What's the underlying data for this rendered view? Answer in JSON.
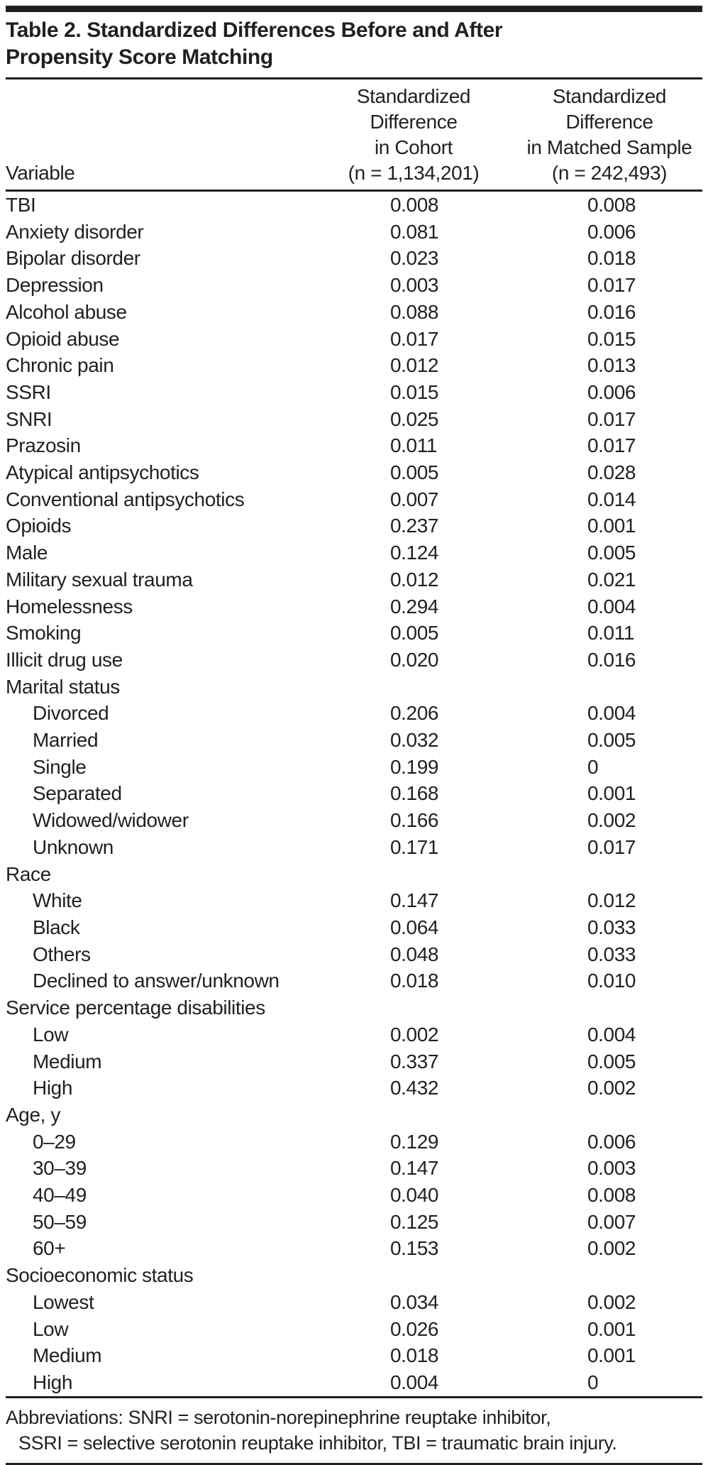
{
  "title": "Table 2. Standardized Differences Before and After\nPropensity Score Matching",
  "columns": {
    "variable": "Variable",
    "cohort": "Standardized\nDifference\nin Cohort\n(n = 1,134,201)",
    "matched": "Standardized\nDifference\nin Matched Sample\n(n = 242,493)"
  },
  "rows": [
    {
      "label": "TBI",
      "cohort": "0.008",
      "matched": "0.008"
    },
    {
      "label": "Anxiety disorder",
      "cohort": "0.081",
      "matched": "0.006"
    },
    {
      "label": "Bipolar disorder",
      "cohort": "0.023",
      "matched": "0.018"
    },
    {
      "label": "Depression",
      "cohort": "0.003",
      "matched": "0.017"
    },
    {
      "label": "Alcohol abuse",
      "cohort": "0.088",
      "matched": "0.016"
    },
    {
      "label": "Opioid abuse",
      "cohort": "0.017",
      "matched": "0.015"
    },
    {
      "label": "Chronic pain",
      "cohort": "0.012",
      "matched": "0.013"
    },
    {
      "label": "SSRI",
      "cohort": "0.015",
      "matched": "0.006"
    },
    {
      "label": "SNRI",
      "cohort": "0.025",
      "matched": "0.017"
    },
    {
      "label": "Prazosin",
      "cohort": "0.011",
      "matched": "0.017"
    },
    {
      "label": "Atypical antipsychotics",
      "cohort": "0.005",
      "matched": "0.028"
    },
    {
      "label": "Conventional antipsychotics",
      "cohort": "0.007",
      "matched": "0.014"
    },
    {
      "label": "Opioids",
      "cohort": "0.237",
      "matched": "0.001"
    },
    {
      "label": "Male",
      "cohort": "0.124",
      "matched": "0.005"
    },
    {
      "label": "Military sexual trauma",
      "cohort": "0.012",
      "matched": "0.021"
    },
    {
      "label": "Homelessness",
      "cohort": "0.294",
      "matched": "0.004"
    },
    {
      "label": "Smoking",
      "cohort": "0.005",
      "matched": "0.011"
    },
    {
      "label": "Illicit drug use",
      "cohort": "0.020",
      "matched": "0.016"
    },
    {
      "label": "Marital status",
      "section": true
    },
    {
      "label": "Divorced",
      "indent": true,
      "cohort": "0.206",
      "matched": "0.004"
    },
    {
      "label": "Married",
      "indent": true,
      "cohort": "0.032",
      "matched": "0.005"
    },
    {
      "label": "Single",
      "indent": true,
      "cohort": "0.199",
      "matched": "0"
    },
    {
      "label": "Separated",
      "indent": true,
      "cohort": "0.168",
      "matched": "0.001"
    },
    {
      "label": "Widowed/widower",
      "indent": true,
      "cohort": "0.166",
      "matched": "0.002"
    },
    {
      "label": "Unknown",
      "indent": true,
      "cohort": "0.171",
      "matched": "0.017"
    },
    {
      "label": "Race",
      "section": true
    },
    {
      "label": "White",
      "indent": true,
      "cohort": "0.147",
      "matched": "0.012"
    },
    {
      "label": "Black",
      "indent": true,
      "cohort": "0.064",
      "matched": "0.033"
    },
    {
      "label": "Others",
      "indent": true,
      "cohort": "0.048",
      "matched": "0.033"
    },
    {
      "label": "Declined to answer/unknown",
      "indent": true,
      "cohort": "0.018",
      "matched": "0.010"
    },
    {
      "label": "Service percentage disabilities",
      "section": true
    },
    {
      "label": "Low",
      "indent": true,
      "cohort": "0.002",
      "matched": "0.004"
    },
    {
      "label": "Medium",
      "indent": true,
      "cohort": "0.337",
      "matched": "0.005"
    },
    {
      "label": "High",
      "indent": true,
      "cohort": "0.432",
      "matched": "0.002"
    },
    {
      "label": "Age, y",
      "section": true
    },
    {
      "label": "0–29",
      "indent": true,
      "cohort": "0.129",
      "matched": "0.006"
    },
    {
      "label": "30–39",
      "indent": true,
      "cohort": "0.147",
      "matched": "0.003"
    },
    {
      "label": "40–49",
      "indent": true,
      "cohort": "0.040",
      "matched": "0.008"
    },
    {
      "label": "50–59",
      "indent": true,
      "cohort": "0.125",
      "matched": "0.007"
    },
    {
      "label": "60+",
      "indent": true,
      "cohort": "0.153",
      "matched": "0.002"
    },
    {
      "label": "Socioeconomic status",
      "section": true
    },
    {
      "label": "Lowest",
      "indent": true,
      "cohort": "0.034",
      "matched": "0.002"
    },
    {
      "label": "Low",
      "indent": true,
      "cohort": "0.026",
      "matched": "0.001"
    },
    {
      "label": "Medium",
      "indent": true,
      "cohort": "0.018",
      "matched": "0.001"
    },
    {
      "label": "High",
      "indent": true,
      "cohort": "0.004",
      "matched": "0"
    }
  ],
  "footnote": {
    "line1": "Abbreviations: SNRI = serotonin-norepinephrine reuptake inhibitor,",
    "line2": "SSRI = selective serotonin reuptake inhibitor, TBI = traumatic brain injury."
  },
  "colors": {
    "text": "#231f20",
    "rule": "#231f20",
    "background": "#ffffff"
  }
}
